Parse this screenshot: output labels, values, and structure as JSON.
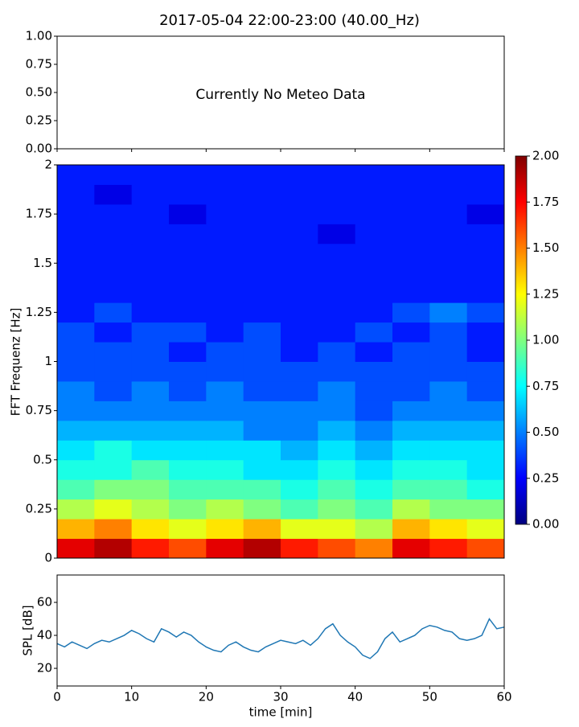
{
  "chart_data": [
    {
      "type": "empty",
      "title": "2017-05-04 22:00-23:00 (40.00_Hz)",
      "annotation": "Currently No Meteo Data",
      "xlim": [
        0,
        60
      ],
      "xticks": [
        0,
        10,
        20,
        30,
        40,
        50,
        60
      ],
      "ylim": [
        0,
        1
      ],
      "yticks": [
        {
          "value": 0,
          "label": "0.00"
        },
        {
          "value": 0.25,
          "label": "0.25"
        },
        {
          "value": 0.5,
          "label": "0.50"
        },
        {
          "value": 0.75,
          "label": "0.75"
        },
        {
          "value": 1,
          "label": "1.00"
        }
      ]
    },
    {
      "type": "heatmap",
      "ylabel": "FFT Frequenz [Hz]",
      "colormap": "jet",
      "xlim": [
        0,
        60
      ],
      "ylim": [
        0,
        2
      ],
      "yticks": [
        0,
        0.25,
        0.5,
        0.75,
        1,
        1.25,
        1.5,
        1.75,
        2
      ],
      "xbins": [
        0,
        5,
        10,
        15,
        20,
        25,
        30,
        35,
        40,
        45,
        50,
        55,
        60
      ],
      "ybins": [
        0,
        0.1,
        0.2,
        0.3,
        0.4,
        0.5,
        0.6,
        0.7,
        0.8,
        0.9,
        1.0,
        1.1,
        1.2,
        1.3,
        1.4,
        1.5,
        1.6,
        1.7,
        1.8,
        1.9,
        2.0
      ],
      "values": [
        [
          1.8,
          1.9,
          1.7,
          1.6,
          1.8,
          1.9,
          1.7,
          1.6,
          1.5,
          1.8,
          1.7,
          1.6
        ],
        [
          1.4,
          1.5,
          1.3,
          1.2,
          1.3,
          1.4,
          1.2,
          1.2,
          1.1,
          1.4,
          1.3,
          1.2
        ],
        [
          1.1,
          1.2,
          1.1,
          1.0,
          1.1,
          1.0,
          0.9,
          1.0,
          0.9,
          1.1,
          1.0,
          1.0
        ],
        [
          0.9,
          1.0,
          1.0,
          0.9,
          0.9,
          0.9,
          0.8,
          0.9,
          0.8,
          0.9,
          0.9,
          0.8
        ],
        [
          0.8,
          0.8,
          0.9,
          0.8,
          0.8,
          0.7,
          0.7,
          0.8,
          0.7,
          0.8,
          0.8,
          0.7
        ],
        [
          0.7,
          0.8,
          0.7,
          0.7,
          0.7,
          0.7,
          0.6,
          0.7,
          0.6,
          0.7,
          0.7,
          0.7
        ],
        [
          0.6,
          0.6,
          0.6,
          0.6,
          0.6,
          0.5,
          0.5,
          0.6,
          0.5,
          0.6,
          0.6,
          0.6
        ],
        [
          0.5,
          0.5,
          0.5,
          0.5,
          0.5,
          0.5,
          0.5,
          0.5,
          0.4,
          0.5,
          0.5,
          0.5
        ],
        [
          0.5,
          0.4,
          0.5,
          0.4,
          0.5,
          0.4,
          0.4,
          0.5,
          0.4,
          0.4,
          0.5,
          0.4
        ],
        [
          0.4,
          0.4,
          0.4,
          0.4,
          0.4,
          0.4,
          0.4,
          0.4,
          0.4,
          0.4,
          0.4,
          0.4
        ],
        [
          0.4,
          0.4,
          0.4,
          0.3,
          0.4,
          0.4,
          0.3,
          0.4,
          0.3,
          0.4,
          0.4,
          0.3
        ],
        [
          0.4,
          0.3,
          0.4,
          0.4,
          0.3,
          0.4,
          0.3,
          0.3,
          0.4,
          0.3,
          0.4,
          0.3
        ],
        [
          0.3,
          0.4,
          0.3,
          0.3,
          0.3,
          0.3,
          0.3,
          0.3,
          0.3,
          0.4,
          0.5,
          0.4
        ],
        [
          0.3,
          0.3,
          0.3,
          0.3,
          0.3,
          0.3,
          0.3,
          0.3,
          0.3,
          0.3,
          0.3,
          0.3
        ],
        [
          0.3,
          0.3,
          0.3,
          0.3,
          0.3,
          0.3,
          0.3,
          0.3,
          0.3,
          0.3,
          0.3,
          0.3
        ],
        [
          0.3,
          0.3,
          0.3,
          0.3,
          0.3,
          0.3,
          0.3,
          0.3,
          0.3,
          0.3,
          0.3,
          0.3
        ],
        [
          0.3,
          0.3,
          0.3,
          0.3,
          0.3,
          0.3,
          0.3,
          0.2,
          0.3,
          0.3,
          0.3,
          0.3
        ],
        [
          0.3,
          0.3,
          0.3,
          0.2,
          0.3,
          0.3,
          0.3,
          0.3,
          0.3,
          0.3,
          0.3,
          0.2
        ],
        [
          0.3,
          0.2,
          0.3,
          0.3,
          0.3,
          0.3,
          0.3,
          0.3,
          0.3,
          0.3,
          0.3,
          0.3
        ],
        [
          0.3,
          0.3,
          0.3,
          0.3,
          0.3,
          0.3,
          0.3,
          0.3,
          0.3,
          0.3,
          0.3,
          0.3
        ]
      ],
      "clim": [
        0,
        2
      ],
      "cticks": [
        {
          "value": 0,
          "label": "0.00"
        },
        {
          "value": 0.25,
          "label": "0.25"
        },
        {
          "value": 0.5,
          "label": "0.50"
        },
        {
          "value": 0.75,
          "label": "0.75"
        },
        {
          "value": 1,
          "label": "1.00"
        },
        {
          "value": 1.25,
          "label": "1.25"
        },
        {
          "value": 1.5,
          "label": "1.50"
        },
        {
          "value": 1.75,
          "label": "1.75"
        },
        {
          "value": 2,
          "label": "2.00"
        }
      ]
    },
    {
      "type": "line",
      "xlabel": "time [min]",
      "ylabel": "SPL [dB]",
      "color": "#1f77b4",
      "xlim": [
        0,
        60
      ],
      "xticks": [
        0,
        10,
        20,
        30,
        40,
        50,
        60
      ],
      "ylim": [
        9.3,
        76.6
      ],
      "yticks": [
        20,
        40,
        60
      ],
      "x": [
        0,
        1,
        2,
        3,
        4,
        5,
        6,
        7,
        8,
        9,
        10,
        11,
        12,
        13,
        14,
        15,
        16,
        17,
        18,
        19,
        20,
        21,
        22,
        23,
        24,
        25,
        26,
        27,
        28,
        29,
        30,
        31,
        32,
        33,
        34,
        35,
        36,
        37,
        38,
        39,
        40,
        41,
        42,
        43,
        44,
        45,
        46,
        47,
        48,
        49,
        50,
        51,
        52,
        53,
        54,
        55,
        56,
        57,
        58,
        59,
        60
      ],
      "values": [
        35,
        33,
        36,
        34,
        32,
        35,
        37,
        36,
        38,
        40,
        43,
        41,
        38,
        36,
        44,
        42,
        39,
        42,
        40,
        36,
        33,
        31,
        30,
        34,
        36,
        33,
        31,
        30,
        33,
        35,
        37,
        36,
        35,
        37,
        34,
        38,
        44,
        47,
        40,
        36,
        33,
        28,
        26,
        30,
        38,
        42,
        36,
        38,
        40,
        44,
        46,
        45,
        43,
        42,
        38,
        37,
        38,
        40,
        50,
        44,
        45
      ]
    }
  ]
}
